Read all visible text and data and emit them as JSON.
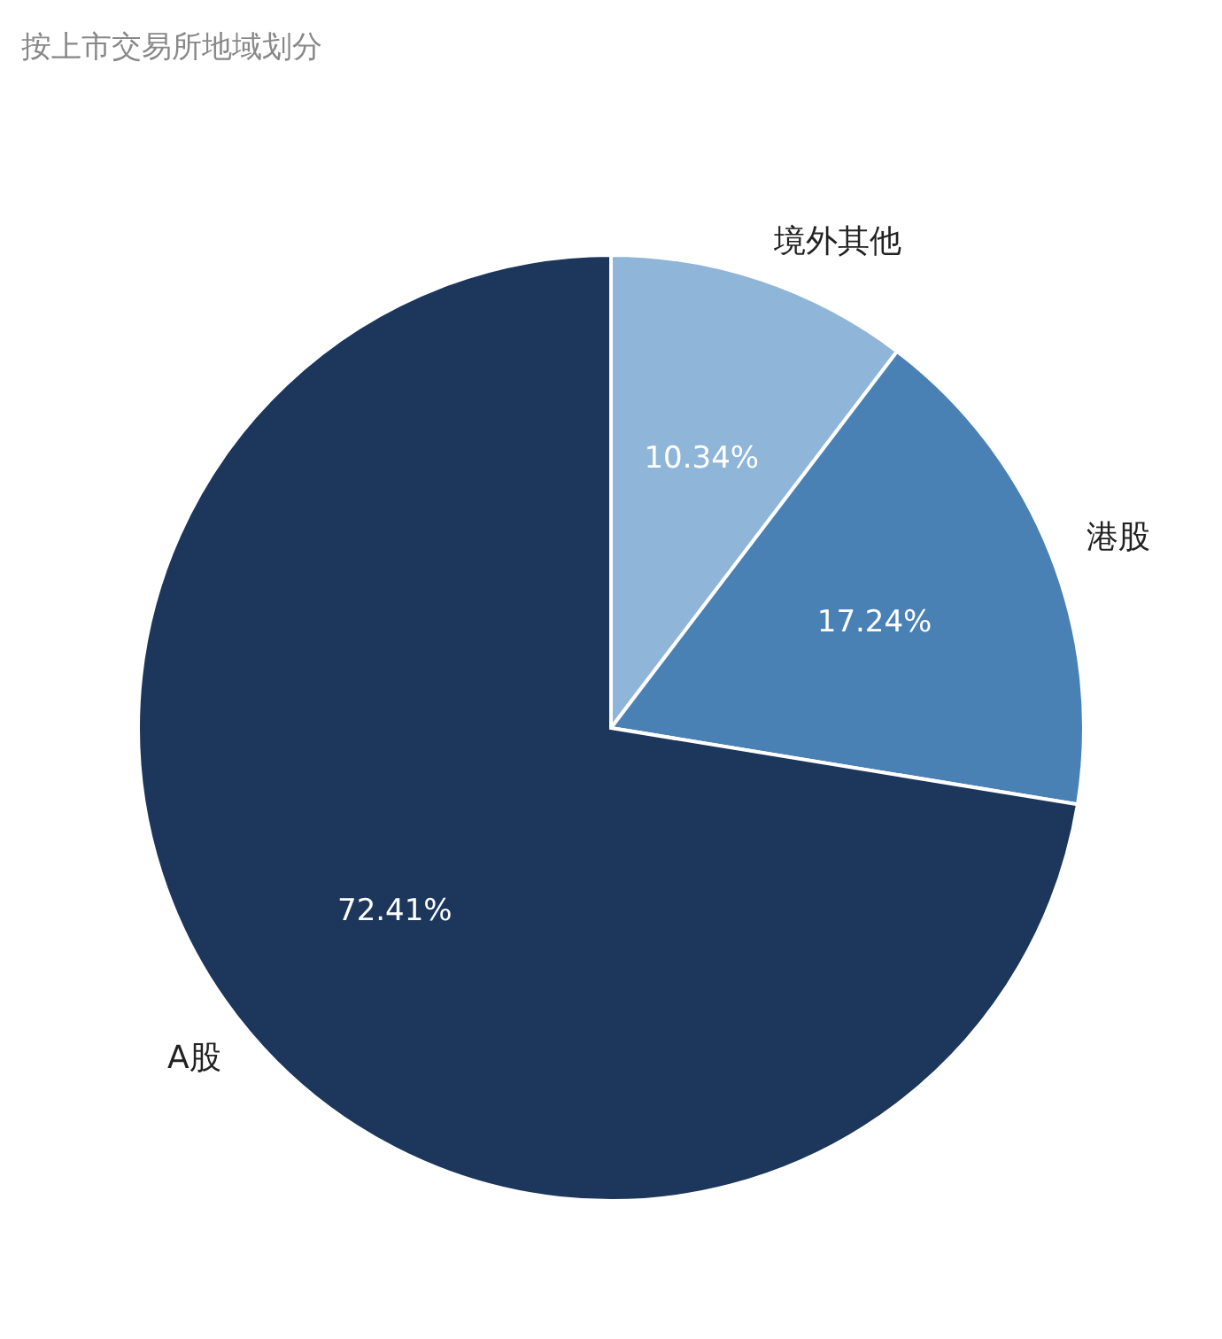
{
  "chart_data": {
    "type": "pie",
    "title": "按上市交易所地域划分",
    "categories": [
      "境外其他",
      "港股",
      "A股"
    ],
    "values": [
      10.34,
      17.24,
      72.41
    ],
    "value_labels": [
      "10.34%",
      "17.24%",
      "72.41%"
    ],
    "colors": [
      "#8fb6d9",
      "#4a81b5",
      "#1c365c"
    ]
  }
}
